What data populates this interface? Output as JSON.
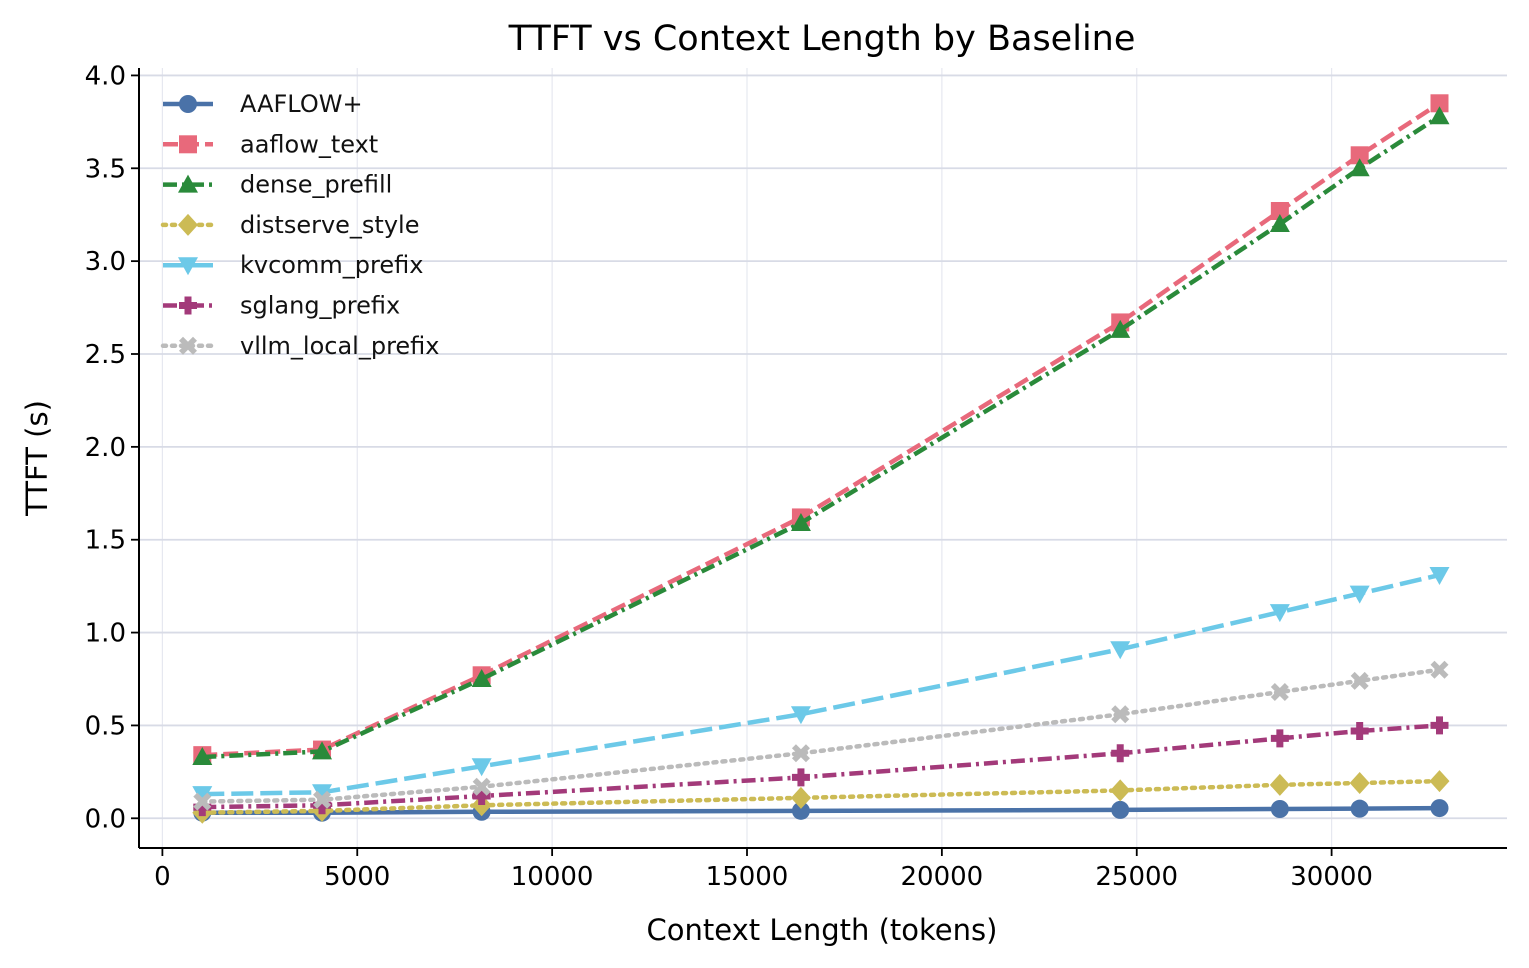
{
  "chart_data": {
    "type": "line",
    "title": "TTFT vs Context Length by Baseline",
    "xlabel": "Context Length (tokens)",
    "ylabel": "TTFT (s)",
    "xlim": [
      -600,
      34500
    ],
    "ylim": [
      -0.16,
      4.04
    ],
    "xticks": [
      0,
      5000,
      10000,
      15000,
      20000,
      25000,
      30000
    ],
    "yticks": [
      0.0,
      0.5,
      1.0,
      1.5,
      2.0,
      2.5,
      3.0,
      3.5,
      4.0
    ],
    "xtick_labels": [
      "0",
      "5000",
      "10000",
      "15000",
      "20000",
      "25000",
      "30000"
    ],
    "ytick_labels": [
      "0.0",
      "0.5",
      "1.0",
      "1.5",
      "2.0",
      "2.5",
      "3.0",
      "3.5",
      "4.0"
    ],
    "grid": true,
    "legend_position": "top-left",
    "x": [
      1024,
      4096,
      8192,
      16384,
      24576,
      28672,
      30720,
      32768
    ],
    "series": [
      {
        "name": "AAFLOW+",
        "color": "#4a72a8",
        "marker": "circle",
        "dash": "solid",
        "values": [
          0.03,
          0.03,
          0.035,
          0.04,
          0.045,
          0.05,
          0.052,
          0.055
        ]
      },
      {
        "name": "aaflow_text",
        "color": "#e8697b",
        "marker": "square",
        "dash": "dashed",
        "values": [
          0.34,
          0.37,
          0.77,
          1.62,
          2.67,
          3.27,
          3.57,
          3.85
        ]
      },
      {
        "name": "dense_prefill",
        "color": "#2a8a3a",
        "marker": "triangle-up",
        "dash": "dashdot",
        "values": [
          0.33,
          0.36,
          0.75,
          1.59,
          2.63,
          3.2,
          3.5,
          3.78
        ]
      },
      {
        "name": "distserve_style",
        "color": "#ccbb55",
        "marker": "diamond",
        "dash": "dotted",
        "values": [
          0.03,
          0.04,
          0.07,
          0.11,
          0.15,
          0.18,
          0.19,
          0.2
        ]
      },
      {
        "name": "kvcomm_prefix",
        "color": "#6cc9e8",
        "marker": "triangle-down",
        "dash": "longdash",
        "values": [
          0.13,
          0.14,
          0.28,
          0.56,
          0.91,
          1.11,
          1.21,
          1.31
        ]
      },
      {
        "name": "sglang_prefix",
        "color": "#a33a7a",
        "marker": "plus",
        "dash": "dashdot",
        "values": [
          0.06,
          0.07,
          0.12,
          0.22,
          0.35,
          0.43,
          0.47,
          0.5
        ]
      },
      {
        "name": "vllm_local_prefix",
        "color": "#bbbbbb",
        "marker": "x",
        "dash": "dotted",
        "values": [
          0.09,
          0.1,
          0.17,
          0.35,
          0.56,
          0.68,
          0.74,
          0.8
        ]
      }
    ]
  }
}
